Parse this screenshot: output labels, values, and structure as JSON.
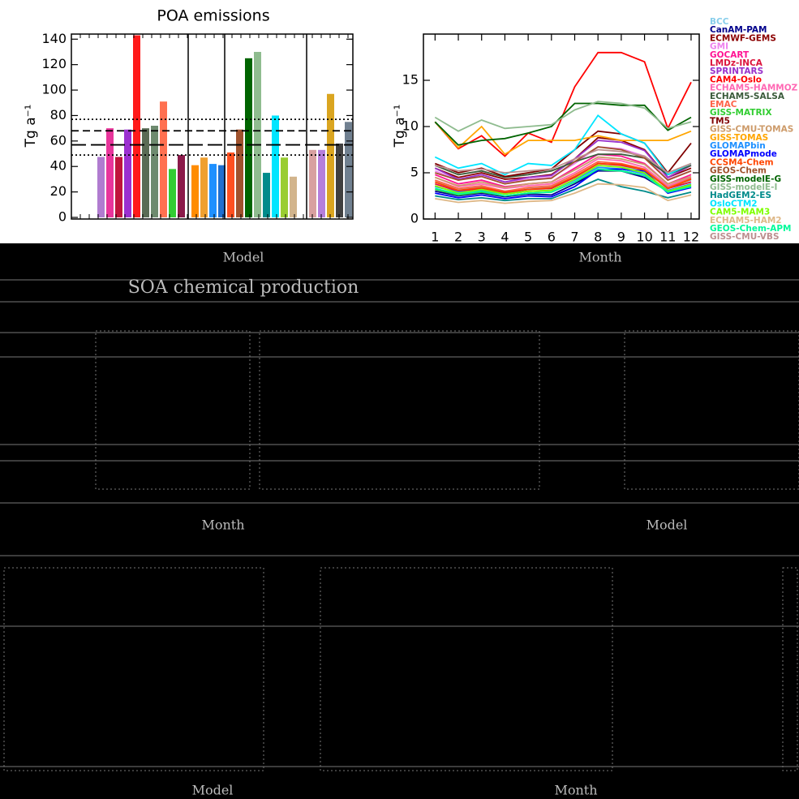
{
  "chart_data": [
    {
      "type": "bar",
      "title": "POA emissions",
      "y_label": "Tg a⁻¹",
      "x_label": "Model",
      "categories": [
        null,
        null,
        null,
        null,
        null,
        null,
        null,
        null,
        null,
        null,
        null,
        null,
        null,
        null,
        null,
        null,
        null,
        null,
        null,
        null,
        null,
        null,
        null,
        null,
        null,
        null,
        null
      ],
      "values": [
        47.5,
        70,
        47.5,
        69,
        143,
        70,
        72,
        91,
        38,
        49,
        41,
        47,
        42,
        41,
        51,
        69,
        125,
        130,
        35,
        80,
        47,
        32,
        53,
        53,
        97,
        58,
        75
      ],
      "colors": [
        "#b07cd0",
        "#e8359b",
        "#c0143c",
        "#9b30d0",
        "#ff1a1a",
        "#5a6b55",
        "#6e8a6e",
        "#ff7050",
        "#33cc33",
        "#8b1a4a",
        "#ff8c00",
        "#f0a030",
        "#1e90ff",
        "#1e6fd0",
        "#ff5020",
        "#a0522d",
        "#006400",
        "#8fbc8f",
        "#008b8b",
        "#00e5ff",
        "#9acd32",
        "#d2b48c",
        "#d8a0a0",
        "#b57edc",
        "#daa520",
        "#404040",
        "#708090"
      ],
      "reference_lines": [
        77,
        68,
        57,
        49
      ],
      "reference_styles": [
        "dotted",
        "dashed",
        "long-dashed",
        "dotted"
      ],
      "ylim": [
        0,
        144
      ],
      "yticks": [
        0,
        20,
        40,
        60,
        80,
        100,
        120,
        140
      ]
    },
    {
      "type": "line",
      "y_label": "Tg a⁻¹",
      "x_label": "Month",
      "x": [
        1,
        2,
        3,
        4,
        5,
        6,
        7,
        8,
        9,
        10,
        11,
        12
      ],
      "xlim": [
        0.5,
        12.35
      ],
      "xticks": [
        1,
        2,
        3,
        4,
        5,
        6,
        7,
        8,
        9,
        10,
        11,
        12
      ],
      "ylim": [
        0,
        20
      ],
      "yticks": [
        0,
        5,
        10,
        15
      ],
      "series": [
        {
          "name": "BCC",
          "color": "#87ceeb",
          "values": [
            4,
            3.2,
            3.5,
            3,
            3.3,
            3.5,
            4.5,
            6,
            5.8,
            5,
            3.5,
            4.2
          ]
        },
        {
          "name": "CanAM-PAM",
          "color": "#00008b",
          "values": [
            3,
            2.5,
            2.8,
            2.4,
            2.7,
            2.6,
            3.8,
            5.2,
            5.2,
            4.5,
            3,
            3.5
          ]
        },
        {
          "name": "ECMWF-GEMS",
          "color": "#8b0000",
          "values": [
            5.5,
            4.5,
            5,
            4.3,
            4.5,
            4.8,
            6.5,
            8.8,
            8.5,
            7.5,
            4.5,
            5.5
          ]
        },
        {
          "name": "GMI",
          "color": "#ee82ee",
          "values": [
            5.2,
            4.2,
            4.8,
            4,
            4.3,
            4.5,
            6,
            7.8,
            7.6,
            6.8,
            4.3,
            5.2
          ]
        },
        {
          "name": "GOCART",
          "color": "#ff1493",
          "values": [
            4.8,
            3.8,
            4.2,
            3.5,
            3.8,
            4,
            5.5,
            7,
            6.8,
            6,
            3.8,
            4.8
          ]
        },
        {
          "name": "LMDz-INCA",
          "color": "#dc143c",
          "values": [
            3.8,
            3,
            3.3,
            2.8,
            3.2,
            3.3,
            4.5,
            6,
            5.8,
            5.3,
            3.3,
            4
          ]
        },
        {
          "name": "SPRINTARS",
          "color": "#9932cc",
          "values": [
            5.5,
            4.3,
            4.8,
            4,
            4.5,
            4.7,
            6.5,
            8.5,
            8.3,
            7.4,
            4.5,
            5.8
          ]
        },
        {
          "name": "CAM4-Oslo",
          "color": "#ff0000",
          "values": [
            10.5,
            7.6,
            9,
            6.8,
            9.3,
            8.3,
            14.3,
            18,
            18,
            17,
            9.8,
            14.8
          ]
        },
        {
          "name": "ECHAM5-HAMMOZ",
          "color": "#ff69b4",
          "values": [
            4.5,
            3.5,
            3.8,
            3.3,
            3.6,
            3.8,
            5,
            6.5,
            6.3,
            5.6,
            3.6,
            4.5
          ]
        },
        {
          "name": "ECHAM5-SALSA",
          "color": "#3b5b3b",
          "values": [
            5.8,
            4.8,
            5.2,
            4.5,
            4.8,
            5.2,
            6.2,
            7,
            7,
            6.6,
            4.8,
            5.8
          ]
        },
        {
          "name": "EMAC",
          "color": "#ff6347",
          "values": [
            4.2,
            3.3,
            3.6,
            3,
            3.4,
            3.6,
            4.8,
            6.2,
            6,
            5.4,
            3.4,
            4.4
          ]
        },
        {
          "name": "GISS-MATRIX",
          "color": "#32cd32",
          "values": [
            3.2,
            2.6,
            2.9,
            2.5,
            2.8,
            2.9,
            4,
            5.3,
            5.2,
            4.7,
            2.9,
            3.6
          ]
        },
        {
          "name": "TM5",
          "color": "#800000",
          "values": [
            6,
            5,
            5.5,
            4.6,
            5,
            5.4,
            7.5,
            9.5,
            9.2,
            8.2,
            5,
            8.2
          ]
        },
        {
          "name": "GISS-CMU-TOMAS",
          "color": "#cd9b6a",
          "values": [
            4.5,
            3.6,
            4,
            3.4,
            3.8,
            4,
            5.3,
            6.7,
            6.5,
            5.9,
            3.8,
            4.6
          ]
        },
        {
          "name": "GISS-TOMAS",
          "color": "#ffa500",
          "values": [
            10.5,
            7.7,
            10,
            7,
            8.5,
            8.5,
            8.5,
            9,
            8.5,
            8.5,
            8.5,
            9.5
          ]
        },
        {
          "name": "GLOMAPbin",
          "color": "#1e90ff",
          "values": [
            3.5,
            2.9,
            3.1,
            2.7,
            3,
            3.1,
            4.2,
            5.6,
            5.4,
            4.9,
            3.1,
            3.8
          ]
        },
        {
          "name": "GLOMAPmode",
          "color": "#0000ff",
          "values": [
            2.8,
            2.3,
            2.6,
            2.2,
            2.5,
            2.4,
            3.5,
            5.3,
            5.4,
            5.2,
            2.8,
            3.4
          ]
        },
        {
          "name": "CCSM4-Chem",
          "color": "#ff4500",
          "values": [
            4,
            3.1,
            3.4,
            2.9,
            3.2,
            3.4,
            4.6,
            6,
            5.9,
            5.3,
            3.3,
            4.3
          ]
        },
        {
          "name": "GEOS-Chem",
          "color": "#a0522d",
          "values": [
            5,
            4.2,
            4.6,
            3.8,
            4.2,
            4.4,
            6.2,
            7.8,
            7.5,
            6.6,
            4.2,
            5.2
          ]
        },
        {
          "name": "GISS-modelE-G",
          "color": "#006400",
          "values": [
            10.5,
            8,
            8.5,
            8.7,
            9.3,
            10,
            12.5,
            12.5,
            12.3,
            12.3,
            9.6,
            11
          ]
        },
        {
          "name": "GISS-modelE-I",
          "color": "#8fbc8f",
          "values": [
            11,
            9.5,
            10.7,
            9.8,
            10,
            10.2,
            11.8,
            12.7,
            12.5,
            12,
            9.8,
            10.5
          ]
        },
        {
          "name": "HadGEM2-ES",
          "color": "#008b8b",
          "values": [
            2.5,
            2.1,
            2.3,
            2,
            2.2,
            2.2,
            3.2,
            4.3,
            3.5,
            3,
            2.3,
            2.9
          ]
        },
        {
          "name": "OsloCTM2",
          "color": "#00e5ff",
          "values": [
            6.7,
            5.5,
            6,
            4.8,
            6,
            5.8,
            7.5,
            11.2,
            9.2,
            8.2,
            4.8,
            6
          ]
        },
        {
          "name": "CAM5-MAM3",
          "color": "#7fff00",
          "values": [
            3.6,
            2.8,
            3.2,
            2.7,
            3,
            3.1,
            4.3,
            5.8,
            5.6,
            5,
            3,
            3.7
          ]
        },
        {
          "name": "ECHAM5-HAM2",
          "color": "#deb887",
          "values": [
            2.2,
            1.8,
            2,
            1.7,
            1.9,
            2,
            2.8,
            3.8,
            3.7,
            3.4,
            2,
            2.6
          ]
        },
        {
          "name": "GEOS-Chem-APM",
          "color": "#00fa9a",
          "values": [
            3.3,
            2.7,
            3,
            2.5,
            2.8,
            2.9,
            4,
            5.4,
            5.2,
            4.7,
            2.9,
            3.5
          ]
        },
        {
          "name": "GISS-CMU-VBS",
          "color": "#bc8f8f",
          "values": [
            5.8,
            5.2,
            5.4,
            5,
            5.2,
            5.4,
            6.5,
            7.5,
            7.3,
            6.8,
            5,
            6
          ]
        }
      ]
    }
  ],
  "lower_panel": {
    "title": "SOA chemical production",
    "labels": [
      "Month",
      "Model",
      "Model",
      "Month"
    ]
  }
}
